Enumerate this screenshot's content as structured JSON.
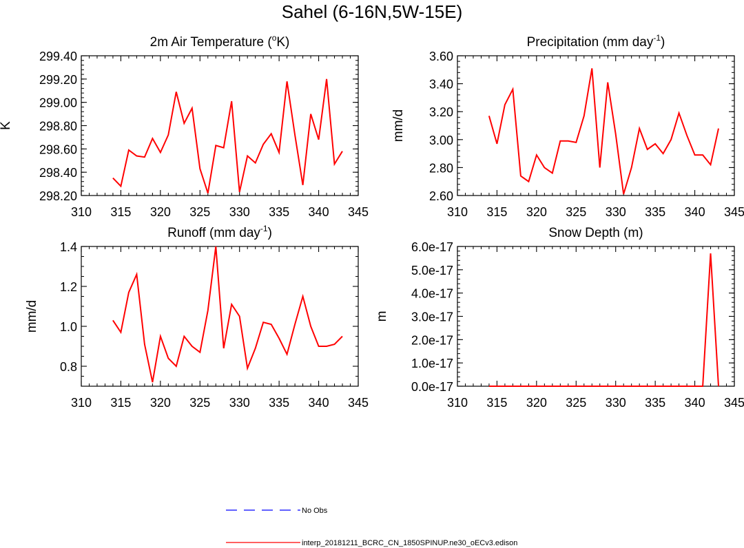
{
  "figure": {
    "title": "Sahel (6-16N,5W-15E)"
  },
  "legend": {
    "items": [
      {
        "label": "No Obs",
        "color": "#0000ff",
        "dash": "dashed"
      },
      {
        "label": "interp_20181211_BCRC_CN_1850SPINUP.ne30_oECv3.edison",
        "color": "#ff0000",
        "dash": "solid"
      }
    ]
  },
  "colors": {
    "series": "#ff0000",
    "noobs": "#0000ff",
    "axis": "#000000"
  },
  "chart_data": [
    {
      "type": "line",
      "title": "2m Air Temperature (",
      "title_sup_pre": "o",
      "title_suffix": "K)",
      "ylabel": "K",
      "xlim": [
        310,
        345
      ],
      "ylim": [
        298.2,
        299.4
      ],
      "xticks": [
        310,
        315,
        320,
        325,
        330,
        335,
        340,
        345
      ],
      "yticks": [
        "298.20",
        "298.40",
        "298.60",
        "298.80",
        "299.00",
        "299.20",
        "299.40"
      ],
      "ytick_values": [
        298.2,
        298.4,
        298.6,
        298.8,
        299.0,
        299.2,
        299.4
      ],
      "y_minor_step": 0.04,
      "series": [
        {
          "name": "interp_20181211_BCRC_CN_1850SPINUP.ne30_oECv3.edison",
          "x": [
            314,
            315,
            316,
            317,
            318,
            319,
            320,
            321,
            322,
            323,
            324,
            325,
            326,
            327,
            328,
            329,
            330,
            331,
            332,
            333,
            334,
            335,
            336,
            337,
            338,
            339,
            340,
            341,
            342,
            343
          ],
          "values": [
            298.35,
            298.28,
            298.59,
            298.54,
            298.53,
            298.69,
            298.57,
            298.72,
            299.09,
            298.82,
            298.95,
            298.43,
            298.22,
            298.63,
            298.61,
            299.01,
            298.23,
            298.54,
            298.48,
            298.64,
            298.73,
            298.57,
            299.18,
            298.72,
            298.29,
            298.9,
            298.68,
            299.2,
            298.47,
            298.58
          ]
        }
      ]
    },
    {
      "type": "line",
      "title": "Precipitation (mm day",
      "title_sup": "-1",
      "title_suffix": ")",
      "ylabel": "mm/d",
      "xlim": [
        310,
        345
      ],
      "ylim": [
        2.6,
        3.6
      ],
      "xticks": [
        310,
        315,
        320,
        325,
        330,
        335,
        340,
        345
      ],
      "yticks": [
        "2.60",
        "2.80",
        "3.00",
        "3.20",
        "3.40",
        "3.60"
      ],
      "ytick_values": [
        2.6,
        2.8,
        3.0,
        3.2,
        3.4,
        3.6
      ],
      "y_minor_step": 0.04,
      "series": [
        {
          "name": "interp_20181211_BCRC_CN_1850SPINUP.ne30_oECv3.edison",
          "x": [
            314,
            315,
            316,
            317,
            318,
            319,
            320,
            321,
            322,
            323,
            324,
            325,
            326,
            327,
            328,
            329,
            330,
            331,
            332,
            333,
            334,
            335,
            336,
            337,
            338,
            339,
            340,
            341,
            342,
            343
          ],
          "values": [
            3.17,
            2.97,
            3.25,
            3.36,
            2.74,
            2.7,
            2.89,
            2.8,
            2.76,
            2.99,
            2.99,
            2.98,
            3.17,
            3.51,
            2.8,
            3.41,
            3.04,
            2.61,
            2.8,
            3.08,
            2.93,
            2.97,
            2.9,
            3.0,
            3.19,
            3.03,
            2.89,
            2.89,
            2.82,
            3.08
          ]
        }
      ]
    },
    {
      "type": "line",
      "title": "Runoff (mm day",
      "title_sup": "-1",
      "title_suffix": ")",
      "ylabel": "mm/d",
      "xlim": [
        310,
        345
      ],
      "ylim": [
        0.7,
        1.4
      ],
      "xticks": [
        310,
        315,
        320,
        325,
        330,
        335,
        340,
        345
      ],
      "yticks": [
        "0.8",
        "1.0",
        "1.2",
        "1.4"
      ],
      "ytick_values": [
        0.8,
        1.0,
        1.2,
        1.4
      ],
      "y_minor_step": 0.05,
      "series": [
        {
          "name": "interp_20181211_BCRC_CN_1850SPINUP.ne30_oECv3.edison",
          "x": [
            314,
            315,
            316,
            317,
            318,
            319,
            320,
            321,
            322,
            323,
            324,
            325,
            326,
            327,
            328,
            329,
            330,
            331,
            332,
            333,
            334,
            335,
            336,
            337,
            338,
            339,
            340,
            341,
            342,
            343
          ],
          "values": [
            1.03,
            0.97,
            1.17,
            1.26,
            0.91,
            0.72,
            0.95,
            0.84,
            0.8,
            0.95,
            0.9,
            0.87,
            1.08,
            1.4,
            0.89,
            1.11,
            1.05,
            0.79,
            0.89,
            1.02,
            1.01,
            0.94,
            0.86,
            1.01,
            1.15,
            1.0,
            0.9,
            0.9,
            0.91,
            0.95
          ]
        }
      ]
    },
    {
      "type": "line",
      "title": "Snow Depth (m)",
      "ylabel": "m",
      "xlim": [
        310,
        345
      ],
      "ylim": [
        0,
        6e-17
      ],
      "xticks": [
        310,
        315,
        320,
        325,
        330,
        335,
        340,
        345
      ],
      "yticks": [
        "0.0e-17",
        "1.0e-17",
        "2.0e-17",
        "3.0e-17",
        "4.0e-17",
        "5.0e-17",
        "6.0e-17"
      ],
      "ytick_values": [
        0,
        1e-17,
        2e-17,
        3e-17,
        4e-17,
        5e-17,
        6e-17
      ],
      "y_minor_step": 2e-18,
      "series": [
        {
          "name": "interp_20181211_BCRC_CN_1850SPINUP.ne30_oECv3.edison",
          "x": [
            314,
            315,
            316,
            317,
            318,
            319,
            320,
            321,
            322,
            323,
            324,
            325,
            326,
            327,
            328,
            329,
            330,
            331,
            332,
            333,
            334,
            335,
            336,
            337,
            338,
            339,
            340,
            341,
            342,
            343
          ],
          "values": [
            0,
            0,
            0,
            0,
            0,
            0,
            0,
            0,
            0,
            0,
            0,
            0,
            0,
            0,
            0,
            0,
            0,
            0,
            0,
            0,
            0,
            0,
            0,
            0,
            0,
            0,
            0,
            0,
            5.7e-17,
            0
          ]
        }
      ]
    }
  ]
}
